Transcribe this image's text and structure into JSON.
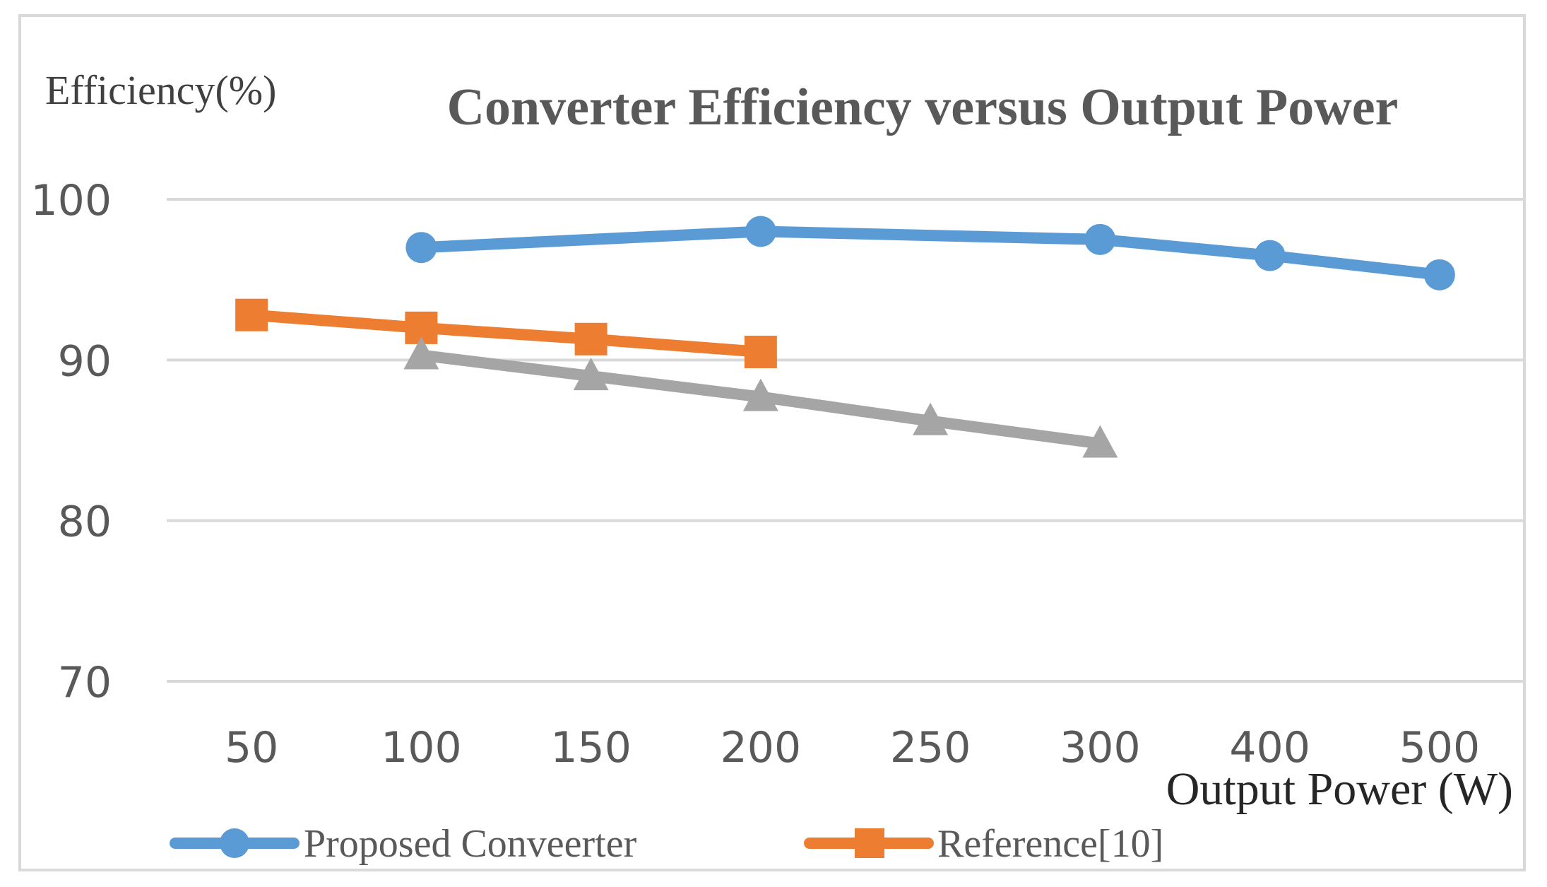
{
  "chart_data": {
    "type": "line",
    "title": "Converter Efficiency versus Output Power",
    "ylabel": "Efficiency(%)",
    "xlabel": "Output Power (W)",
    "categories": [
      "50",
      "100",
      "150",
      "200",
      "250",
      "300",
      "400",
      "500"
    ],
    "ylim": [
      70,
      100
    ],
    "yticks": [
      "100",
      "90",
      "80",
      "70"
    ],
    "grid": true,
    "legend_position": "bottom",
    "series": [
      {
        "name": "Proposed Conveerter",
        "color": "#5b9bd5",
        "marker": "circle",
        "values": [
          null,
          97.0,
          null,
          98.0,
          null,
          97.5,
          96.5,
          95.3
        ]
      },
      {
        "name": "Reference[10]",
        "color": "#ed7d31",
        "marker": "square",
        "values": [
          92.8,
          92.0,
          91.3,
          90.5,
          null,
          null,
          null,
          null
        ]
      },
      {
        "name": "",
        "color": "#a5a5a5",
        "marker": "triangle",
        "values": [
          null,
          90.3,
          89.0,
          87.7,
          86.2,
          84.8,
          null,
          null
        ]
      }
    ]
  }
}
